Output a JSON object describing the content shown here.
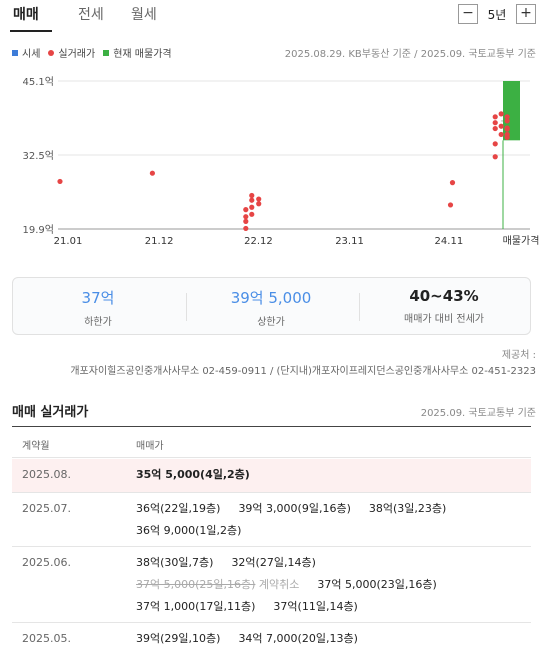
{
  "tabs": {
    "items": [
      "매매",
      "전세",
      "월세"
    ],
    "active": 0
  },
  "period": {
    "minus": "−",
    "value": "5년",
    "plus": "+"
  },
  "legend": {
    "items": [
      {
        "label": "시세",
        "color": "#3d7cd8"
      },
      {
        "label": "실거래가",
        "color": "#e64545"
      },
      {
        "label": "현재 매물가격",
        "color": "#3cb043"
      }
    ],
    "basis": "2025.08.29. KB부동산 기준 / 2025.09. 국토교통부 기준"
  },
  "chart_data": {
    "type": "scatter",
    "y_ticks": [
      "45.1억",
      "32.5억",
      "19.9억"
    ],
    "y_tick_values": [
      45.1,
      32.5,
      19.9
    ],
    "ylim": [
      19.9,
      45.1
    ],
    "x_ticks": [
      "21.01",
      "21.12",
      "22.12",
      "23.11",
      "24.11",
      "매물가격"
    ],
    "x_tick_times": [
      2021.0,
      2021.917,
      2022.917,
      2023.833,
      2024.833
    ],
    "xlim": [
      2021.0,
      2025.75
    ],
    "series": [
      {
        "name": "실거래가",
        "color": "#e64545",
        "points": [
          [
            2021.02,
            28.0
          ],
          [
            2021.95,
            29.4
          ],
          [
            2022.89,
            20.0
          ],
          [
            2022.89,
            21.2
          ],
          [
            2022.89,
            22.0
          ],
          [
            2022.89,
            23.2
          ],
          [
            2022.95,
            22.4
          ],
          [
            2022.95,
            23.6
          ],
          [
            2022.95,
            24.8
          ],
          [
            2022.95,
            25.6
          ],
          [
            2023.02,
            24.2
          ],
          [
            2023.02,
            25.0
          ],
          [
            2024.95,
            24.0
          ],
          [
            2024.97,
            27.8
          ],
          [
            2025.4,
            32.2
          ],
          [
            2025.4,
            34.4
          ],
          [
            2025.4,
            37.0
          ],
          [
            2025.4,
            38.0
          ],
          [
            2025.4,
            39.0
          ],
          [
            2025.46,
            36.0
          ],
          [
            2025.46,
            37.4
          ],
          [
            2025.46,
            39.5
          ],
          [
            2025.52,
            35.5
          ],
          [
            2025.52,
            36.0
          ],
          [
            2025.52,
            36.9
          ],
          [
            2025.52,
            37.1
          ],
          [
            2025.52,
            38.3
          ],
          [
            2025.52,
            39.0
          ]
        ]
      }
    ],
    "current_listing": {
      "name": "현재 매물가격",
      "low": 35.0,
      "high": 45.1,
      "color": "#3cb043"
    }
  },
  "summary": {
    "low_value": "37억",
    "low_label": "하한가",
    "high_value": "39억 5,000",
    "high_label": "상한가",
    "ratio_value": "40~43%",
    "ratio_label": "매매가 대비 전세가"
  },
  "source": {
    "label": "제공처 :",
    "text": "개포자이힐즈공인중개사사무소 02-459-0911 / (단지내)개포자이프레지던스공인중개사사무소 02-451-2323"
  },
  "trades": {
    "title": "매매 실거래가",
    "basis": "2025.09. 국토교통부 기준",
    "col_date": "계약월",
    "col_price": "매매가",
    "rows": [
      {
        "date": "2025.08.",
        "deals": [
          "35억 5,000(4일,2층)"
        ]
      },
      {
        "date": "2025.07.",
        "deals": [
          "36억(22일,19층)",
          "39억 3,000(9일,16층)",
          "38억(3일,23층)",
          "36억 9,000(1일,2층)"
        ]
      },
      {
        "date": "2025.06.",
        "deals": [
          "38억(30일,7층)",
          "32억(27일,14층)"
        ],
        "cancelled": "37억 5,000(25일,16층)",
        "cancel_tag": "계약취소",
        "deals2": [
          "37억 5,000(23일,16층)",
          "37억 1,000(17일,11층)",
          "37억(11일,14층)"
        ]
      },
      {
        "date": "2025.05.",
        "deals": [
          "39억(29일,10층)",
          "34억 7,000(20일,13층)"
        ]
      }
    ]
  }
}
